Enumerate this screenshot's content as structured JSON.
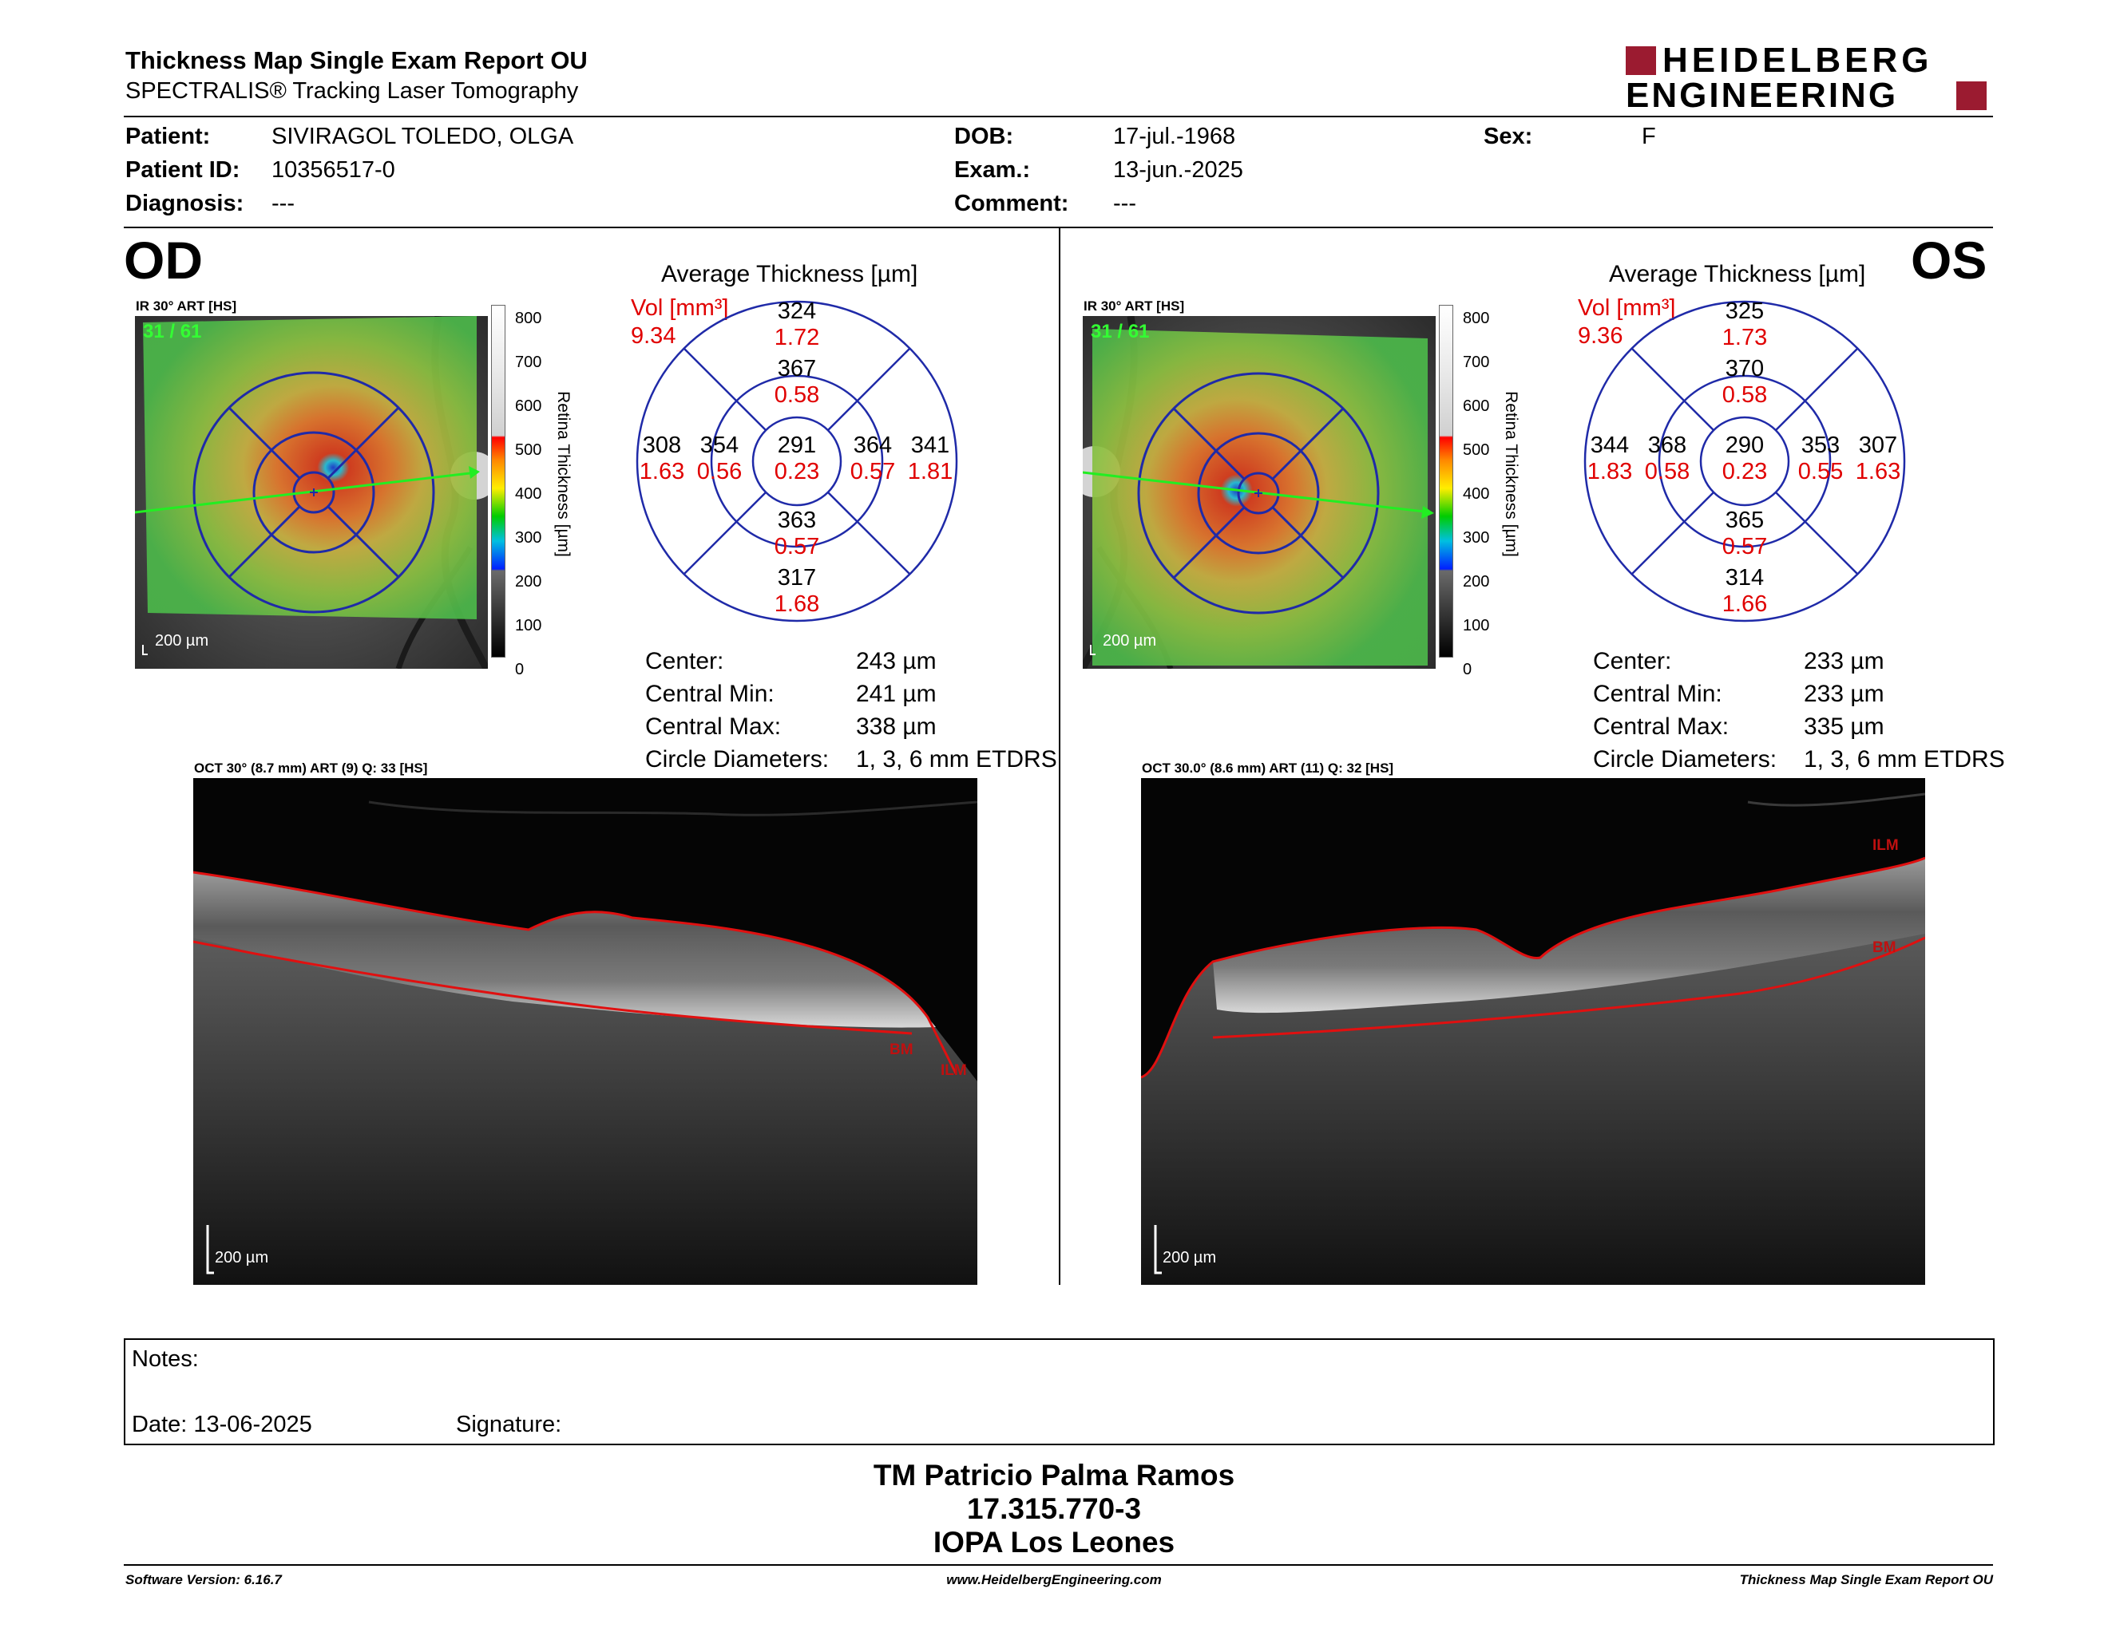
{
  "header": {
    "title": "Thickness Map Single Exam Report OU",
    "subtitle": "SPECTRALIS® Tracking Laser Tomography",
    "logo_line1": "HEIDELBERG",
    "logo_line2": "ENGINEERING",
    "logo_color": "#9b1b30"
  },
  "patient": {
    "patient_label": "Patient:",
    "patient_value": "SIVIRAGOL TOLEDO, OLGA",
    "id_label": "Patient ID:",
    "id_value": "10356517-0",
    "diag_label": "Diagnosis:",
    "diag_value": "---",
    "dob_label": "DOB:",
    "dob_value": "17-jul.-1968",
    "exam_label": "Exam.:",
    "exam_value": "13-jun.-2025",
    "comment_label": "Comment:",
    "comment_value": "---",
    "sex_label": "Sex:",
    "sex_value": "F"
  },
  "od": {
    "eye": "OD",
    "ir_label": "IR 30° ART [HS]",
    "frame": "31 / 61",
    "scale": "200 µm",
    "colorbar": {
      "ticks": [
        "800",
        "700",
        "600",
        "500",
        "400",
        "300",
        "200",
        "100",
        "0"
      ],
      "label": "Retina  Thickness [µm]"
    },
    "avg_title": "Average Thickness [µm]",
    "vol_label": "Vol [mm³]",
    "vol_value": "9.34",
    "grid": {
      "center": {
        "t": "291",
        "v": "0.23"
      },
      "inner_top": {
        "t": "367",
        "v": "0.58"
      },
      "inner_bottom": {
        "t": "363",
        "v": "0.57"
      },
      "inner_left": {
        "t": "354",
        "v": "0.56"
      },
      "inner_right": {
        "t": "364",
        "v": "0.57"
      },
      "outer_top": {
        "t": "324",
        "v": "1.72"
      },
      "outer_bottom": {
        "t": "317",
        "v": "1.68"
      },
      "outer_left": {
        "t": "308",
        "v": "1.63"
      },
      "outer_right": {
        "t": "341",
        "v": "1.81"
      }
    },
    "stats": {
      "center_label": "Center:",
      "center_value": "243 µm",
      "min_label": "Central Min:",
      "min_value": "241 µm",
      "max_label": "Central Max:",
      "max_value": "338 µm",
      "diam_label": "Circle Diameters:",
      "diam_value": "1, 3, 6 mm ETDRS"
    },
    "oct_label": "OCT 30° (8.7 mm) ART (9) Q: 33 [HS]",
    "oct_scale": "200 µm",
    "bm_label": "BM",
    "ilm_label": "ILM"
  },
  "os": {
    "eye": "OS",
    "ir_label": "IR 30° ART [HS]",
    "frame": "31 / 61",
    "scale": "200 µm",
    "colorbar": {
      "ticks": [
        "800",
        "700",
        "600",
        "500",
        "400",
        "300",
        "200",
        "100",
        "0"
      ],
      "label": "Retina  Thickness [µm]"
    },
    "avg_title": "Average Thickness [µm]",
    "vol_label": "Vol [mm³]",
    "vol_value": "9.36",
    "grid": {
      "center": {
        "t": "290",
        "v": "0.23"
      },
      "inner_top": {
        "t": "370",
        "v": "0.58"
      },
      "inner_bottom": {
        "t": "365",
        "v": "0.57"
      },
      "inner_left": {
        "t": "368",
        "v": "0.58"
      },
      "inner_right": {
        "t": "353",
        "v": "0.55"
      },
      "outer_top": {
        "t": "325",
        "v": "1.73"
      },
      "outer_bottom": {
        "t": "314",
        "v": "1.66"
      },
      "outer_left": {
        "t": "344",
        "v": "1.83"
      },
      "outer_right": {
        "t": "307",
        "v": "1.63"
      }
    },
    "stats": {
      "center_label": "Center:",
      "center_value": "233 µm",
      "min_label": "Central Min:",
      "min_value": "233 µm",
      "max_label": "Central Max:",
      "max_value": "335 µm",
      "diam_label": "Circle Diameters:",
      "diam_value": "1, 3, 6 mm ETDRS"
    },
    "oct_label": "OCT 30.0° (8.6 mm) ART (11) Q: 32 [HS]",
    "oct_scale": "200 µm",
    "ilm_label": "ILM",
    "bm_label": "BM"
  },
  "notes": {
    "notes_label": "Notes:",
    "date_label": "Date: 13-06-2025",
    "signature_label": "Signature:"
  },
  "signer": {
    "name": "TM Patricio Palma Ramos",
    "rut": "17.315.770-3",
    "place": "IOPA Los Leones"
  },
  "footer": {
    "version": "Software Version: 6.16.7",
    "url": "www.HeidelbergEngineering.com",
    "report": "Thickness Map Single Exam Report OU"
  },
  "colors": {
    "thickness_value": "#000000",
    "volume_value": "#e00000",
    "grid_line": "#1f2aa8",
    "segmentation": "#e01010",
    "scan_line": "#22ee22"
  }
}
